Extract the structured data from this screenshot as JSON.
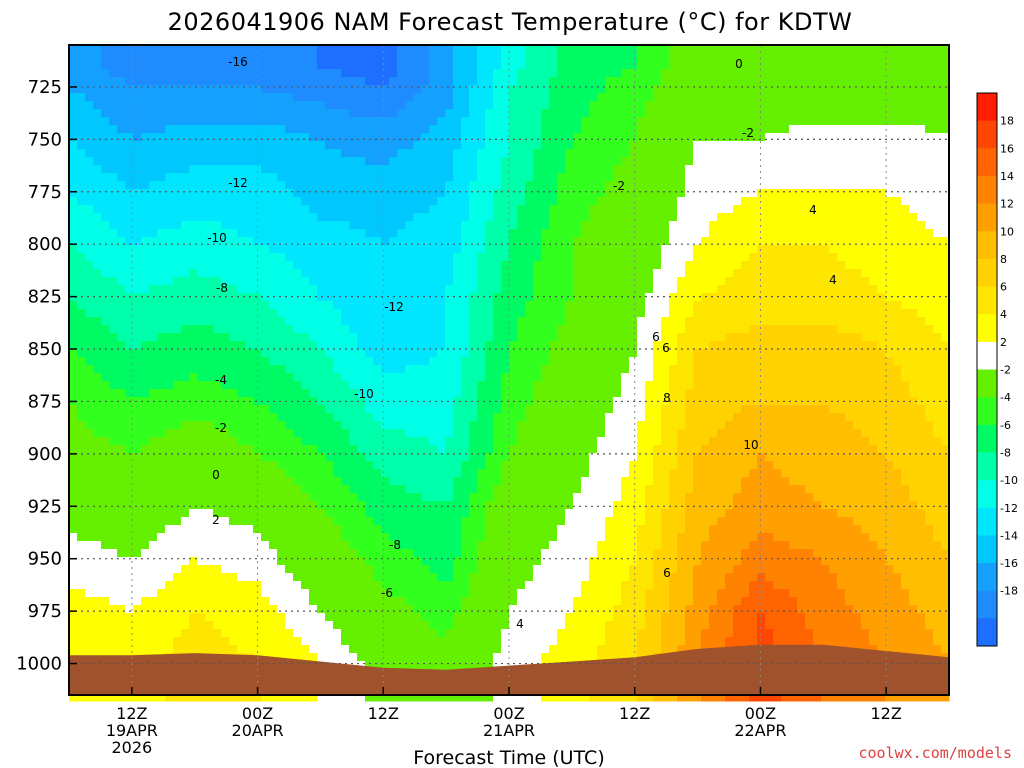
{
  "chart_data": {
    "type": "heatmap",
    "subtype": "time-height filled contour",
    "title": "2026041906 NAM Forecast Temperature (°C) for KDTW",
    "xlabel": "Forecast Time (UTC)",
    "ylabel": "",
    "y_axis": {
      "unit": "hPa",
      "inverted": true,
      "range": [
        1015,
        705
      ],
      "ticks": [
        725,
        750,
        775,
        800,
        825,
        850,
        875,
        900,
        925,
        950,
        975,
        1000
      ],
      "tick_labels": [
        "725",
        "750",
        "775",
        "800",
        "825",
        "850",
        "875",
        "900",
        "925",
        "950",
        "975",
        "1000"
      ]
    },
    "x_axis": {
      "range_hours_utc": [
        "2026-04-19 06Z",
        "2026-04-22 18Z"
      ],
      "ticks": [
        "2026-04-19 12Z",
        "2026-04-20 00Z",
        "2026-04-20 12Z",
        "2026-04-21 00Z",
        "2026-04-21 12Z",
        "2026-04-22 00Z",
        "2026-04-22 12Z"
      ],
      "tick_labels": [
        [
          "12Z",
          "19APR",
          "2026"
        ],
        [
          "00Z",
          "20APR",
          ""
        ],
        [
          "12Z",
          "",
          ""
        ],
        [
          "00Z",
          "21APR",
          ""
        ],
        [
          "12Z",
          "",
          ""
        ],
        [
          "00Z",
          "22APR",
          ""
        ],
        [
          "12Z",
          "",
          ""
        ]
      ]
    },
    "grid": true,
    "colorbar": {
      "placement": "right",
      "levels": [
        -20,
        -18,
        -16,
        -14,
        -12,
        -10,
        -8,
        -6,
        -4,
        -2,
        2,
        4,
        6,
        8,
        10,
        12,
        14,
        16,
        18,
        20
      ],
      "labels": [
        "-18",
        "-16",
        "-14",
        "-12",
        "-10",
        "-8",
        "-6",
        "-4",
        "-2",
        "2",
        "4",
        "6",
        "8",
        "10",
        "12",
        "14",
        "16",
        "18"
      ],
      "colors": [
        "#1e6eff",
        "#1e8cff",
        "#14a0ff",
        "#00c8ff",
        "#00e6ff",
        "#00ffe6",
        "#00ffaa",
        "#00fa64",
        "#32ff1e",
        "#64f000",
        "#ffffff",
        "#ffff00",
        "#ffe600",
        "#ffd200",
        "#ffbe00",
        "#ffa000",
        "#ff8200",
        "#ff6400",
        "#ff4600",
        "#ff1e00"
      ]
    },
    "times": [
      "19/06Z",
      "19/12Z",
      "19/18Z",
      "20/00Z",
      "20/06Z",
      "20/12Z",
      "20/18Z",
      "21/00Z",
      "21/06Z",
      "21/12Z",
      "21/18Z",
      "22/00Z",
      "22/06Z",
      "22/12Z",
      "22/18Z"
    ],
    "pressures": [
      715,
      725,
      750,
      775,
      800,
      825,
      850,
      875,
      900,
      925,
      950,
      975,
      1000
    ],
    "temperatures": [
      [
        -15,
        -17,
        -17,
        -16,
        -18,
        -19,
        -15,
        -9,
        -5,
        -4,
        0,
        0,
        0,
        1,
        1
      ],
      [
        -14,
        -16,
        -16,
        -16,
        -17,
        -18,
        -15,
        -8,
        -5,
        -3,
        0,
        0,
        0,
        0,
        1
      ],
      [
        -12,
        -14,
        -13,
        -13,
        -14,
        -15,
        -13,
        -8,
        -4,
        -2,
        2,
        2,
        3,
        3,
        2
      ],
      [
        -10,
        -12,
        -11,
        -11,
        -13,
        -13,
        -12,
        -7,
        -3,
        -1,
        3,
        4,
        4,
        4,
        3
      ],
      [
        -8,
        -10,
        -9,
        -10,
        -11,
        -12,
        -11,
        -6,
        -2,
        0,
        4,
        6,
        6,
        5,
        4
      ],
      [
        -6,
        -8,
        -7,
        -8,
        -10,
        -12,
        -10,
        -5,
        -2,
        1,
        6,
        7,
        7,
        6,
        5
      ],
      [
        -4,
        -6,
        -5,
        -6,
        -8,
        -11,
        -10,
        -4,
        -1,
        2,
        8,
        9,
        9,
        8,
        6
      ],
      [
        -2,
        -4,
        -3,
        -4,
        -6,
        -9,
        -9,
        -3,
        0,
        3,
        9,
        10,
        10,
        9,
        7
      ],
      [
        -1,
        -2,
        0,
        -2,
        -4,
        -7,
        -8,
        -2,
        1,
        4,
        10,
        12,
        11,
        10,
        8
      ],
      [
        1,
        0,
        2,
        1,
        -2,
        -5,
        -6,
        0,
        2,
        5,
        11,
        13,
        12,
        11,
        9
      ],
      [
        3,
        2,
        4,
        3,
        0,
        -3,
        -5,
        1,
        3,
        6,
        12,
        15,
        14,
        12,
        10
      ],
      [
        5,
        4,
        6,
        5,
        2,
        -1,
        -3,
        2,
        4,
        7,
        13,
        18,
        15,
        13,
        11
      ],
      [
        6,
        5,
        7,
        6,
        4,
        1,
        -1,
        3,
        5,
        8,
        14,
        19,
        16,
        14,
        12
      ]
    ],
    "surface_pressure": [
      996,
      996,
      995,
      996,
      999,
      1002,
      1003,
      1001,
      999,
      997,
      993,
      991,
      991,
      994,
      997
    ],
    "ground_color": "#a0522d",
    "annotations": [
      "-16",
      "-12",
      "-10",
      "-8",
      "-4",
      "-2",
      "0",
      "2",
      "-12",
      "-10",
      "-8",
      "-6",
      "4",
      "0",
      "-2",
      "-2",
      "4",
      "6",
      "4",
      "6",
      "8",
      "10",
      "6"
    ]
  },
  "credit": "coolwx.com/models"
}
